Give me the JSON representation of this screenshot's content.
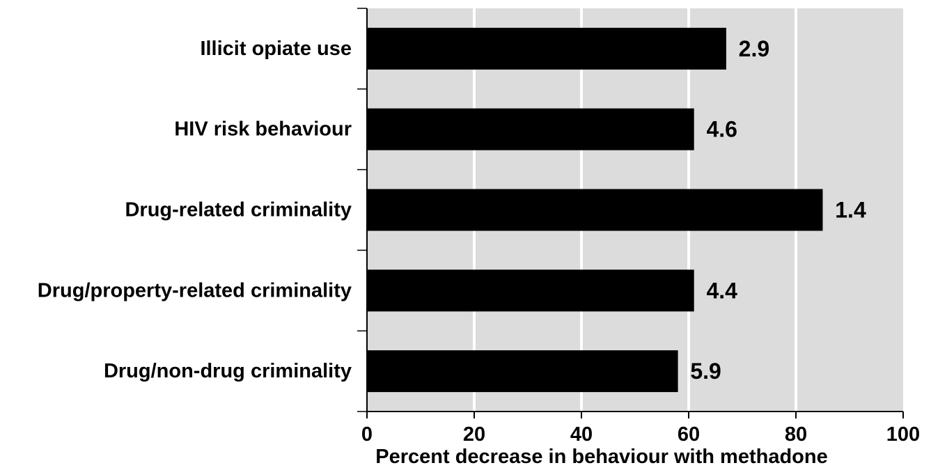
{
  "chart_data": {
    "type": "bar",
    "orientation": "horizontal",
    "title": "",
    "xlabel": "Percent decrease in behaviour with methadone",
    "ylabel": "",
    "xlim": [
      0,
      100
    ],
    "xticks": [
      "0",
      "20",
      "40",
      "60",
      "80",
      "100"
    ],
    "grid": "vertical",
    "legend": "none",
    "categories": [
      "Illicit opiate use",
      "HIV risk behaviour",
      "Drug-related criminality",
      "Drug/property-related criminality",
      "Drug/non-drug criminality"
    ],
    "values": [
      67,
      61,
      85,
      61,
      58
    ],
    "bar_labels": [
      "2.9",
      "4.6",
      "1.4",
      "4.4",
      "5.9"
    ],
    "colors": {
      "bar": "#000000",
      "plot_background": "#dcdcdc",
      "grid": "#ffffff"
    }
  }
}
